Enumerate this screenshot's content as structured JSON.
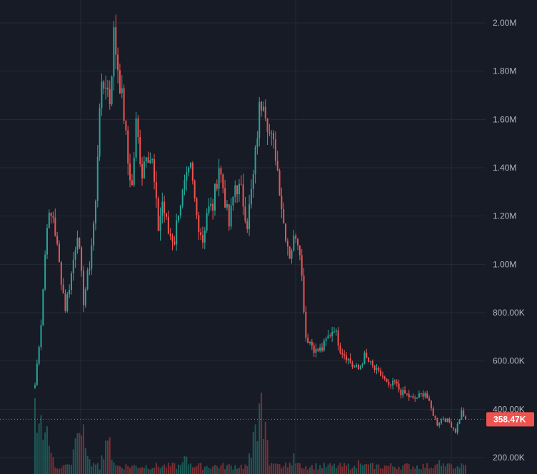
{
  "colors": {
    "background": "#171b26",
    "grid": "#262a35",
    "up": "#26a69a",
    "down": "#ef5350",
    "volume_up": "#1c5a57",
    "volume_down": "#7a2f34",
    "axis_text": "#b2b5be",
    "last_price": "#ef5350"
  },
  "chart_data": {
    "type": "candlestick",
    "title": "",
    "xlabel": "",
    "ylabel": "",
    "y_range": [
      150000,
      2080000
    ],
    "y_ticks": [
      200000,
      400000,
      600000,
      800000,
      1000000,
      1200000,
      1400000,
      1600000,
      1800000,
      2000000
    ],
    "y_tick_labels": [
      "200.00K",
      "400.00K",
      "600.00K",
      "800.00K",
      "1.00M",
      "1.20M",
      "1.40M",
      "1.60M",
      "1.80M",
      "2.00M"
    ],
    "last_price": 358470,
    "last_price_label": "358.47K",
    "grid": true,
    "anchors": [
      [
        0,
        500000
      ],
      [
        3,
        760000
      ],
      [
        6,
        1180000
      ],
      [
        9,
        1200000
      ],
      [
        12,
        1000000
      ],
      [
        15,
        820000
      ],
      [
        18,
        960000
      ],
      [
        21,
        1140000
      ],
      [
        24,
        850000
      ],
      [
        27,
        1000000
      ],
      [
        30,
        1250000
      ],
      [
        32,
        1680000
      ],
      [
        35,
        1760000
      ],
      [
        37,
        1680000
      ],
      [
        39,
        1950000
      ],
      [
        41,
        1820000
      ],
      [
        44,
        1620000
      ],
      [
        46,
        1420000
      ],
      [
        48,
        1320000
      ],
      [
        50,
        1580000
      ],
      [
        53,
        1380000
      ],
      [
        55,
        1480000
      ],
      [
        58,
        1420000
      ],
      [
        61,
        1150000
      ],
      [
        63,
        1260000
      ],
      [
        66,
        1130000
      ],
      [
        69,
        1100000
      ],
      [
        71,
        1230000
      ],
      [
        74,
        1320000
      ],
      [
        77,
        1390000
      ],
      [
        80,
        1200000
      ],
      [
        83,
        1100000
      ],
      [
        85,
        1220000
      ],
      [
        88,
        1240000
      ],
      [
        91,
        1410000
      ],
      [
        93,
        1320000
      ],
      [
        96,
        1160000
      ],
      [
        99,
        1330000
      ],
      [
        102,
        1300000
      ],
      [
        105,
        1170000
      ],
      [
        108,
        1360000
      ],
      [
        111,
        1640000
      ],
      [
        113,
        1700000
      ],
      [
        116,
        1540000
      ],
      [
        119,
        1460000
      ],
      [
        121,
        1320000
      ],
      [
        123,
        1170000
      ],
      [
        126,
        1040000
      ],
      [
        129,
        1130000
      ],
      [
        131,
        1070000
      ],
      [
        134,
        700000
      ],
      [
        136,
        680000
      ],
      [
        139,
        640000
      ],
      [
        142,
        650000
      ],
      [
        145,
        700000
      ],
      [
        148,
        740000
      ],
      [
        151,
        650000
      ],
      [
        154,
        620000
      ],
      [
        157,
        580000
      ],
      [
        160,
        565000
      ],
      [
        163,
        620000
      ],
      [
        166,
        585000
      ],
      [
        169,
        555000
      ],
      [
        172,
        535000
      ],
      [
        175,
        490000
      ],
      [
        178,
        510000
      ],
      [
        181,
        470000
      ],
      [
        184,
        460000
      ],
      [
        187,
        440000
      ],
      [
        190,
        455000
      ],
      [
        193,
        470000
      ],
      [
        196,
        400000
      ],
      [
        199,
        340000
      ],
      [
        202,
        365000
      ],
      [
        205,
        345000
      ],
      [
        208,
        310000
      ],
      [
        211,
        390000
      ],
      [
        213,
        358470
      ]
    ],
    "volume_peaks": [
      [
        0,
        120
      ],
      [
        3,
        90
      ],
      [
        6,
        70
      ],
      [
        22,
        85
      ],
      [
        24,
        70
      ],
      [
        36,
        60
      ],
      [
        75,
        30
      ],
      [
        109,
        70
      ],
      [
        112,
        120
      ],
      [
        128,
        30
      ],
      [
        160,
        20
      ],
      [
        200,
        18
      ]
    ]
  }
}
